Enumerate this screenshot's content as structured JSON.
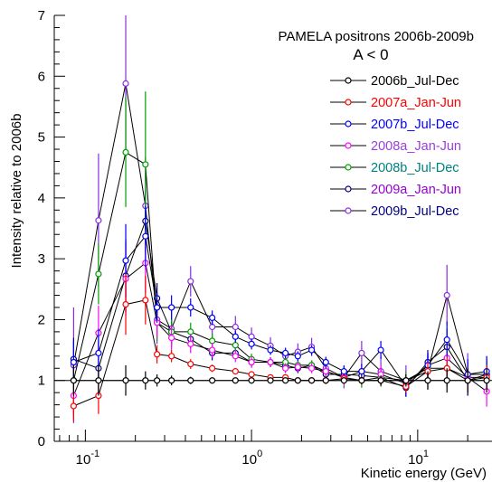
{
  "chart_data": {
    "type": "line",
    "title": "PAMELA positrons 2006b-2009b",
    "subtitle": "A < 0",
    "xlabel": "Kinetic energy (GeV)",
    "ylabel": "Intensity relative to 2006b",
    "xscale": "log",
    "xlim": [
      0.065,
      28
    ],
    "ylim": [
      0,
      7
    ],
    "yticks": [
      0,
      1,
      2,
      3,
      4,
      5,
      6,
      7
    ],
    "xtick_labels": [
      {
        "value": 0.1,
        "base": "10",
        "exp": "-1"
      },
      {
        "value": 1,
        "base": "10",
        "exp": "0"
      },
      {
        "value": 10,
        "base": "10",
        "exp": "1"
      }
    ],
    "grid": false,
    "reference_line": 1,
    "legend_position": "top-right",
    "x": [
      0.085,
      0.12,
      0.175,
      0.23,
      0.27,
      0.33,
      0.43,
      0.58,
      0.8,
      1.0,
      1.3,
      1.6,
      1.9,
      2.3,
      2.8,
      3.6,
      4.6,
      6.0,
      8.5,
      11.5,
      15.0,
      20.0,
      26.0
    ],
    "series": [
      {
        "name": "2006b_Jul-Dec",
        "color": "#000000",
        "label_color": "#000000",
        "values": [
          1,
          1,
          1,
          1,
          1,
          1,
          1,
          1,
          1,
          1,
          1,
          1,
          1,
          1,
          1,
          1,
          1,
          1,
          1,
          1,
          1,
          1,
          1
        ],
        "errors": [
          0.25,
          0.25,
          0.25,
          0.15,
          0.1,
          0.08,
          0.06,
          0.05,
          0.05,
          0.05,
          0.04,
          0.04,
          0.04,
          0.05,
          0.05,
          0.05,
          0.06,
          0.08,
          0.1,
          0.15,
          0.2,
          0.2,
          0.2
        ]
      },
      {
        "name": "2007a_Jan-Jun",
        "color": "#ff0000",
        "label_color": "#ff0000",
        "values": [
          0.58,
          0.75,
          2.25,
          2.32,
          1.43,
          1.4,
          1.27,
          1.2,
          1.15,
          1.1,
          1.05,
          1.05,
          1.0,
          1.0,
          1.0,
          1.03,
          1.0,
          1.0,
          0.9,
          1.15,
          1.2,
          1.0,
          1.05
        ],
        "errors": [
          0.25,
          0.3,
          0.5,
          0.4,
          0.15,
          0.1,
          0.08,
          0.06,
          0.05,
          0.05,
          0.05,
          0.05,
          0.05,
          0.05,
          0.06,
          0.06,
          0.07,
          0.08,
          0.1,
          0.15,
          0.2,
          0.2,
          0.2
        ]
      },
      {
        "name": "2007b_Jul-Dec",
        "color": "#0000ff",
        "label_color": "#0000ff",
        "values": [
          1.3,
          1.45,
          2.97,
          3.37,
          2.2,
          2.2,
          2.2,
          2.03,
          1.72,
          1.6,
          1.5,
          1.45,
          1.4,
          1.5,
          1.3,
          1.15,
          1.15,
          1.5,
          0.9,
          1.25,
          1.67,
          1.1,
          1.15
        ],
        "errors": [
          0.35,
          0.4,
          0.6,
          0.5,
          0.25,
          0.2,
          0.15,
          0.12,
          0.1,
          0.09,
          0.08,
          0.08,
          0.08,
          0.08,
          0.09,
          0.1,
          0.12,
          0.15,
          0.15,
          0.2,
          0.3,
          0.25,
          0.25
        ]
      },
      {
        "name": "2008a_Jan-Jun",
        "color": "#ff00ff",
        "label_color": "#9a3fdc",
        "values": [
          0.75,
          1.78,
          2.67,
          2.93,
          1.95,
          1.7,
          1.6,
          1.5,
          1.4,
          1.3,
          1.3,
          1.2,
          1.22,
          1.2,
          1.15,
          1.05,
          1.15,
          1.1,
          0.95,
          1.25,
          1.37,
          1.05,
          0.82
        ],
        "errors": [
          0.35,
          0.45,
          0.6,
          0.5,
          0.25,
          0.2,
          0.15,
          0.12,
          0.1,
          0.09,
          0.08,
          0.08,
          0.08,
          0.08,
          0.09,
          0.1,
          0.12,
          0.15,
          0.15,
          0.2,
          0.3,
          0.25,
          0.25
        ]
      },
      {
        "name": "2008b_Jul-Dec",
        "color": "#00a000",
        "label_color": "#008080",
        "values": [
          1.0,
          2.75,
          4.75,
          4.55,
          1.95,
          1.8,
          1.8,
          1.65,
          1.58,
          1.35,
          1.3,
          1.3,
          1.25,
          1.25,
          1.15,
          1.05,
          1.0,
          1.05,
          1.0,
          1.2,
          1.2,
          1.05,
          1.05
        ],
        "errors": [
          0.35,
          0.5,
          0.9,
          1.2,
          0.3,
          0.2,
          0.15,
          0.12,
          0.1,
          0.09,
          0.08,
          0.08,
          0.08,
          0.08,
          0.09,
          0.1,
          0.12,
          0.15,
          0.15,
          0.2,
          0.3,
          0.25,
          0.25
        ]
      },
      {
        "name": "2009a_Jan-Jun",
        "color": "#00007f",
        "label_color": "#9400d3",
        "values": [
          1.35,
          1.2,
          2.72,
          3.62,
          2.35,
          1.8,
          1.68,
          1.45,
          1.45,
          1.3,
          1.3,
          1.25,
          1.2,
          1.25,
          1.1,
          1.1,
          1.08,
          1.05,
          0.88,
          1.3,
          1.55,
          1.0,
          1.1
        ],
        "errors": [
          0.35,
          0.45,
          0.6,
          0.5,
          0.25,
          0.2,
          0.15,
          0.12,
          0.1,
          0.09,
          0.08,
          0.08,
          0.08,
          0.08,
          0.09,
          0.1,
          0.12,
          0.15,
          0.15,
          0.2,
          0.3,
          0.25,
          0.25
        ]
      },
      {
        "name": "2009b_Jul-Dec",
        "color": "#8a2be2",
        "label_color": "#00007f",
        "values": [
          1.25,
          3.63,
          5.88,
          3.87,
          2.0,
          1.85,
          2.63,
          1.88,
          1.88,
          1.72,
          1.57,
          1.4,
          1.47,
          1.55,
          1.2,
          1.05,
          1.45,
          1.15,
          1.0,
          1.15,
          2.4,
          1.1,
          1.1
        ],
        "errors": [
          0.95,
          1.1,
          1.2,
          0.8,
          0.4,
          0.3,
          0.25,
          0.2,
          0.18,
          0.15,
          0.14,
          0.14,
          0.14,
          0.15,
          0.16,
          0.18,
          0.2,
          0.25,
          0.25,
          0.3,
          0.5,
          0.35,
          0.3
        ]
      }
    ]
  }
}
